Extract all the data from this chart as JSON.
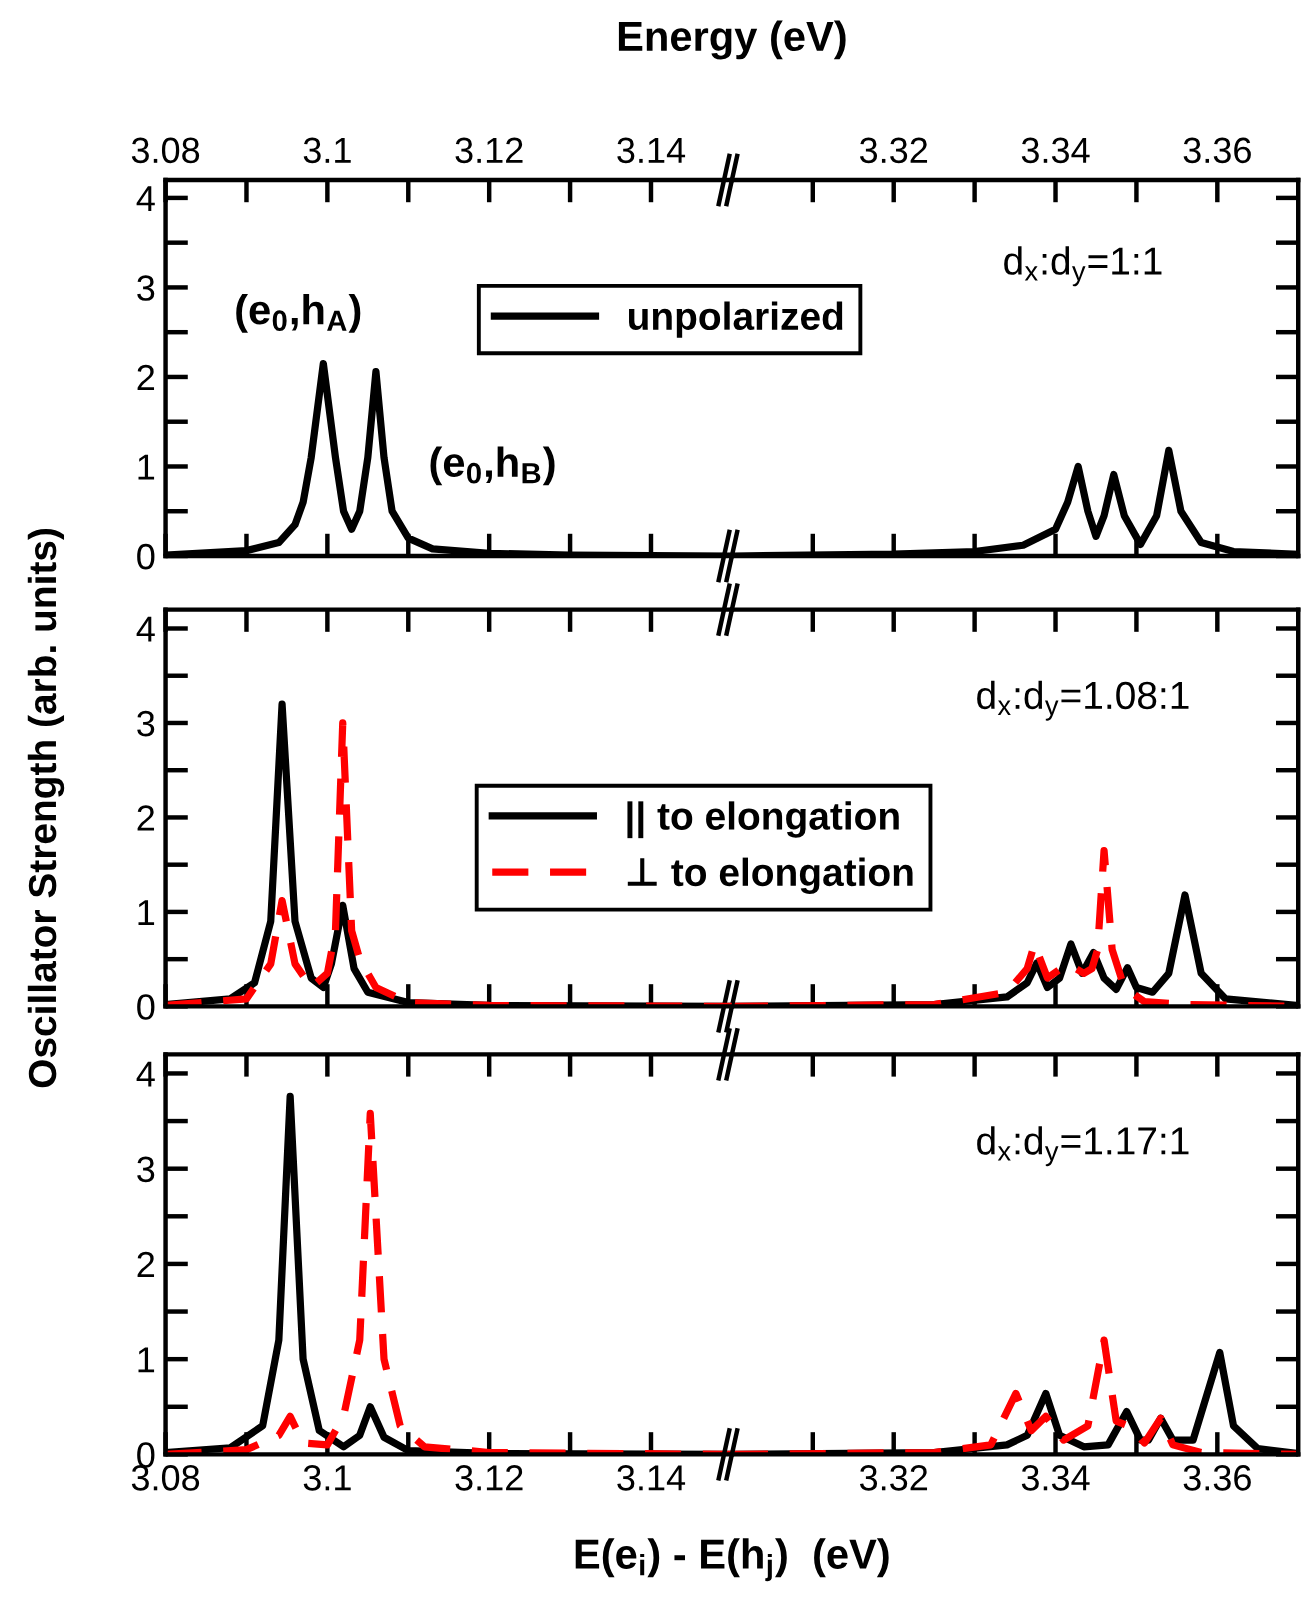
{
  "chart_data": [
    {
      "type": "line",
      "x2label": "Energy (eV)",
      "xlim": [
        3.08,
        3.15
      ],
      "xticks": [
        3.08,
        {
          "value": 3.09,
          "label": null
        },
        3.1,
        {
          "value": 3.11,
          "label": null
        },
        3.12,
        {
          "value": 3.13,
          "label": null
        },
        3.14
      ],
      "x2lim": [
        3.08,
        3.15
      ],
      "x2ticks": [
        3.08,
        {
          "value": 3.09,
          "label": null
        },
        3.1,
        {
          "value": 3.11,
          "label": null
        },
        3.12,
        {
          "value": 3.13,
          "label": null
        },
        3.14
      ],
      "ylim": [
        0,
        4.2
      ],
      "yticks": [
        0,
        {
          "value": 0.5,
          "label": null
        },
        1,
        {
          "value": 1.5,
          "label": null
        },
        2,
        {
          "value": 2.5,
          "label": null
        },
        3,
        {
          "value": 3.5,
          "label": null
        },
        4
      ],
      "tick_labels": "y",
      "legend": "top",
      "grid": false,
      "series": [
        {
          "name": "unpolarized",
          "color": "#000000",
          "line_style": "solid",
          "x": [
            3.08,
            3.09,
            3.094,
            3.096,
            3.097,
            3.098,
            3.0995,
            3.101,
            3.102,
            3.103,
            3.104,
            3.105,
            3.106,
            3.107,
            3.108,
            3.11,
            3.113,
            3.12,
            3.13,
            3.15
          ],
          "values": [
            0.01,
            0.06,
            0.15,
            0.35,
            0.6,
            1.1,
            2.15,
            1.1,
            0.5,
            0.3,
            0.5,
            1.1,
            2.06,
            1.1,
            0.5,
            0.2,
            0.08,
            0.03,
            0.01,
            0.0
          ]
        }
      ],
      "annotations": [
        {
          "text": "(e$_{0}$,h$_{A}$)",
          "x": 3.0995,
          "y": 2.15
        },
        {
          "text": "(e$_{0}$,h$_{B}$)",
          "x": 3.106,
          "y": 2.06
        }
      ]
    },
    {
      "type": "line",
      "xlim": [
        3.3,
        3.37
      ],
      "xticks": [
        {
          "value": 3.31,
          "label": null
        },
        3.32,
        {
          "value": 3.33,
          "label": null
        },
        3.34,
        {
          "value": 3.35,
          "label": null
        },
        3.36
      ],
      "x2lim": [
        3.3,
        3.37
      ],
      "x2ticks": [
        {
          "value": 3.31,
          "label": null
        },
        3.32,
        {
          "value": 3.33,
          "label": null
        },
        3.34,
        {
          "value": 3.35,
          "label": null
        },
        3.36
      ],
      "ylim": [
        0,
        4.2
      ],
      "yticks": [
        0,
        {
          "value": 0.5,
          "label": null
        },
        1,
        {
          "value": 1.5,
          "label": null
        },
        2,
        {
          "value": 2.5,
          "label": null
        },
        3,
        {
          "value": 3.5,
          "label": null
        },
        4
      ],
      "tick_labels": false,
      "grid": false,
      "series": [
        {
          "color": "#000000",
          "line_style": "solid",
          "x": [
            3.3,
            3.32,
            3.33,
            3.336,
            3.34,
            3.3415,
            3.3428,
            3.344,
            3.345,
            3.346,
            3.3472,
            3.3485,
            3.3505,
            3.3525,
            3.354,
            3.3555,
            3.358,
            3.362,
            3.37
          ],
          "values": [
            0.0,
            0.02,
            0.05,
            0.12,
            0.3,
            0.6,
            1.0,
            0.5,
            0.22,
            0.45,
            0.91,
            0.45,
            0.13,
            0.45,
            1.18,
            0.5,
            0.15,
            0.05,
            0.02
          ]
        }
      ],
      "annotations": [
        "d$_{x}$:d$_{y}$=1:1"
      ]
    },
    {
      "type": "line",
      "ylabel": "Oscillator Strength (arb. units)",
      "xlim": [
        3.08,
        3.15
      ],
      "xticks": [
        3.08,
        {
          "value": 3.09,
          "label": null
        },
        3.1,
        {
          "value": 3.11,
          "label": null
        },
        3.12,
        {
          "value": 3.13,
          "label": null
        },
        3.14
      ],
      "ylim": [
        0,
        4.2
      ],
      "yticks": [
        0,
        {
          "value": 0.5,
          "label": null
        },
        1,
        {
          "value": 1.5,
          "label": null
        },
        2,
        {
          "value": 2.5,
          "label": null
        },
        3,
        {
          "value": 3.5,
          "label": null
        },
        4
      ],
      "tick_labels": "y",
      "legend": "center",
      "grid": false,
      "series": [
        {
          "name": "|| to elongation",
          "color": "#000000",
          "line_style": "solid",
          "x": [
            3.08,
            3.088,
            3.091,
            3.093,
            3.0944,
            3.096,
            3.098,
            3.0995,
            3.1005,
            3.1019,
            3.1033,
            3.105,
            3.11,
            3.12,
            3.15
          ],
          "values": [
            0.02,
            0.08,
            0.25,
            0.9,
            3.2,
            0.9,
            0.3,
            0.2,
            0.45,
            1.07,
            0.4,
            0.15,
            0.04,
            0.01,
            0.0
          ]
        },
        {
          "name": "⊥ to elongation",
          "color": "#ff0000",
          "line_style": "dashed",
          "x": [
            3.08,
            3.09,
            3.093,
            3.0944,
            3.096,
            3.098,
            3.1,
            3.101,
            3.1019,
            3.103,
            3.104,
            3.106,
            3.11,
            3.12,
            3.15
          ],
          "values": [
            0.01,
            0.08,
            0.45,
            1.12,
            0.45,
            0.2,
            0.35,
            0.8,
            3.0,
            0.8,
            0.5,
            0.2,
            0.04,
            0.01,
            0.0
          ]
        }
      ]
    },
    {
      "type": "line",
      "xlim": [
        3.3,
        3.37
      ],
      "xticks": [
        {
          "value": 3.31,
          "label": null
        },
        3.32,
        {
          "value": 3.33,
          "label": null
        },
        3.34,
        {
          "value": 3.35,
          "label": null
        },
        3.36
      ],
      "ylim": [
        0,
        4.2
      ],
      "yticks": [
        0,
        {
          "value": 0.5,
          "label": null
        },
        1,
        {
          "value": 1.5,
          "label": null
        },
        2,
        {
          "value": 2.5,
          "label": null
        },
        3,
        {
          "value": 3.5,
          "label": null
        },
        4
      ],
      "tick_labels": false,
      "grid": false,
      "series": [
        {
          "color": "#000000",
          "line_style": "solid",
          "x": [
            3.3,
            3.325,
            3.334,
            3.3365,
            3.3377,
            3.339,
            3.3405,
            3.3419,
            3.3433,
            3.3447,
            3.346,
            3.3475,
            3.3489,
            3.35,
            3.352,
            3.354,
            3.356,
            3.358,
            3.361,
            3.37
          ],
          "values": [
            0.0,
            0.02,
            0.1,
            0.25,
            0.46,
            0.2,
            0.3,
            0.66,
            0.35,
            0.57,
            0.3,
            0.18,
            0.41,
            0.2,
            0.15,
            0.35,
            1.18,
            0.35,
            0.08,
            0.01
          ]
        },
        {
          "color": "#ff0000",
          "line_style": "dashed",
          "x": [
            3.3,
            3.325,
            3.334,
            3.3365,
            3.3374,
            3.339,
            3.3415,
            3.3435,
            3.3445,
            3.3452,
            3.346,
            3.347,
            3.3485,
            3.351,
            3.356,
            3.37
          ],
          "values": [
            0.0,
            0.02,
            0.15,
            0.4,
            0.66,
            0.3,
            0.45,
            0.35,
            0.4,
            0.6,
            1.65,
            0.6,
            0.2,
            0.05,
            0.02,
            0.0
          ]
        }
      ],
      "annotations": [
        "d$_{x}$:d$_{y}$=1.08:1"
      ]
    },
    {
      "type": "line",
      "xlabel": "E(e$_{i}$) - E(h$_{j}$)  (eV)",
      "xlim": [
        3.08,
        3.15
      ],
      "xticks": [
        3.08,
        {
          "value": 3.09,
          "label": null
        },
        3.1,
        {
          "value": 3.11,
          "label": null
        },
        3.12,
        {
          "value": 3.13,
          "label": null
        },
        3.14
      ],
      "ylim": [
        0,
        4.2
      ],
      "yticks": [
        0,
        {
          "value": 0.5,
          "label": null
        },
        1,
        {
          "value": 1.5,
          "label": null
        },
        2,
        {
          "value": 2.5,
          "label": null
        },
        3,
        {
          "value": 3.5,
          "label": null
        },
        4
      ],
      "grid": false,
      "series": [
        {
          "color": "#000000",
          "line_style": "solid",
          "x": [
            3.08,
            3.088,
            3.092,
            3.094,
            3.0954,
            3.097,
            3.099,
            3.102,
            3.104,
            3.1053,
            3.107,
            3.11,
            3.12,
            3.15
          ],
          "values": [
            0.02,
            0.07,
            0.3,
            1.2,
            3.76,
            1.0,
            0.25,
            0.08,
            0.2,
            0.5,
            0.18,
            0.04,
            0.01,
            0.0
          ]
        },
        {
          "color": "#ff0000",
          "line_style": "dashed",
          "x": [
            3.08,
            3.09,
            3.094,
            3.0954,
            3.097,
            3.1,
            3.102,
            3.104,
            3.1053,
            3.107,
            3.109,
            3.112,
            3.12,
            3.15
          ],
          "values": [
            0.0,
            0.05,
            0.2,
            0.4,
            0.12,
            0.1,
            0.4,
            1.2,
            3.58,
            1.0,
            0.3,
            0.08,
            0.02,
            0.0
          ]
        }
      ]
    },
    {
      "type": "line",
      "xlim": [
        3.3,
        3.37
      ],
      "xticks": [
        {
          "value": 3.31,
          "label": null
        },
        3.32,
        {
          "value": 3.33,
          "label": null
        },
        3.34,
        {
          "value": 3.35,
          "label": null
        },
        3.36
      ],
      "ylim": [
        0,
        4.2
      ],
      "yticks": [
        0,
        {
          "value": 0.5,
          "label": null
        },
        1,
        {
          "value": 1.5,
          "label": null
        },
        2,
        {
          "value": 2.5,
          "label": null
        },
        3,
        {
          "value": 3.5,
          "label": null
        },
        4
      ],
      "tick_labels": "x",
      "grid": false,
      "series": [
        {
          "color": "#000000",
          "line_style": "solid",
          "x": [
            3.3,
            3.325,
            3.334,
            3.3365,
            3.3388,
            3.3405,
            3.3435,
            3.3465,
            3.3488,
            3.3505,
            3.3515,
            3.353,
            3.3545,
            3.357,
            3.3603,
            3.362,
            3.365,
            3.37
          ],
          "values": [
            0.0,
            0.02,
            0.1,
            0.2,
            0.64,
            0.2,
            0.08,
            0.1,
            0.45,
            0.15,
            0.15,
            0.38,
            0.15,
            0.15,
            1.07,
            0.3,
            0.06,
            0.01
          ]
        },
        {
          "color": "#ff0000",
          "line_style": "dashed",
          "x": [
            3.3,
            3.325,
            3.332,
            3.3351,
            3.337,
            3.3388,
            3.341,
            3.344,
            3.346,
            3.3475,
            3.349,
            3.351,
            3.353,
            3.3545,
            3.358,
            3.37
          ],
          "values": [
            0.0,
            0.02,
            0.1,
            0.64,
            0.25,
            0.4,
            0.15,
            0.3,
            1.2,
            0.35,
            0.3,
            0.12,
            0.38,
            0.1,
            0.02,
            0.0
          ]
        }
      ],
      "annotations": [
        "d$_{x}$:d$_{y}$=1.17:1"
      ]
    }
  ]
}
